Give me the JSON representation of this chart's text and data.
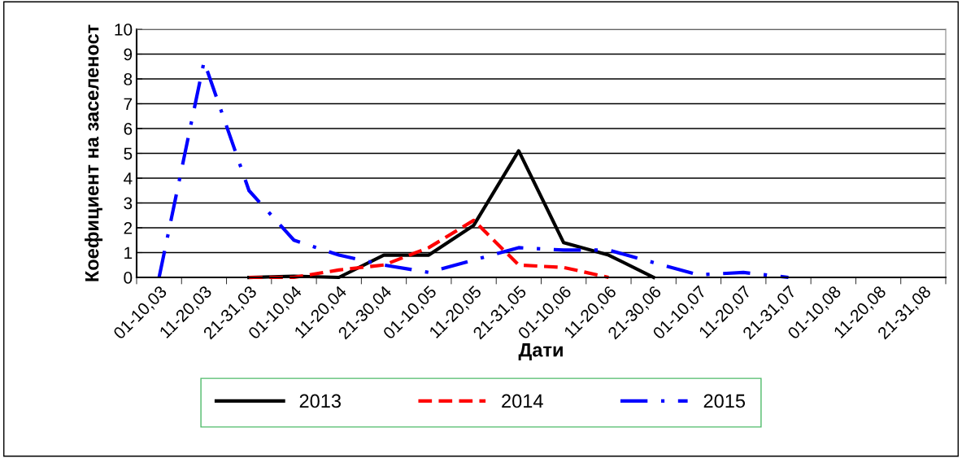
{
  "chart_data": {
    "type": "line",
    "xlabel": "Дати",
    "ylabel": "Коефициент на заселеност",
    "categories": [
      "01-10,03",
      "11-20,03",
      "21-31,03",
      "01-10,04",
      "11-20,04",
      "21-30,04",
      "01-10,05",
      "11-20,05",
      "21-31,05",
      "01-10,06",
      "11-20,06",
      "21-30,06",
      "01-10,07",
      "11-20,07",
      "21-31,07",
      "01-10,08",
      "11-20,08",
      "21-31,08"
    ],
    "series": [
      {
        "name": "2013",
        "color": "#000000",
        "line_style": "solid",
        "values": [
          null,
          null,
          0,
          0.05,
          0,
          0.9,
          0.9,
          2.1,
          5.1,
          1.4,
          0.9,
          0,
          null,
          null,
          null,
          null,
          null,
          null
        ]
      },
      {
        "name": "2014",
        "color": "#ff0000",
        "line_style": "dashed",
        "values": [
          null,
          null,
          0,
          0,
          0.3,
          0.5,
          1.2,
          2.3,
          0.5,
          0.4,
          0,
          null,
          null,
          null,
          null,
          null,
          null,
          null
        ]
      },
      {
        "name": "2015",
        "color": "#0000ff",
        "line_style": "dashdot",
        "values": [
          0,
          8.7,
          3.5,
          1.5,
          0.9,
          0.5,
          0.2,
          0.7,
          1.2,
          1.1,
          1.1,
          0.6,
          0.1,
          0.2,
          0,
          null,
          null,
          null
        ]
      }
    ],
    "ylim": [
      0,
      10
    ],
    "yticks": [
      0,
      1,
      2,
      3,
      4,
      5,
      6,
      7,
      8,
      9,
      10
    ],
    "grid": "y",
    "legend": "bottom",
    "marker": "none"
  }
}
